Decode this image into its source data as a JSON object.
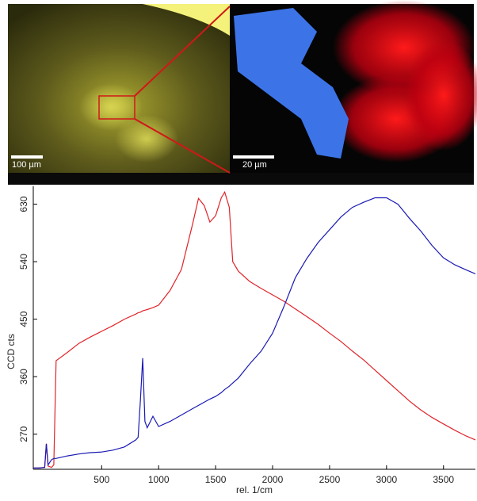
{
  "images": {
    "left_scale": "100 µm",
    "right_scale": "20 µm"
  },
  "chart_data": {
    "type": "line",
    "x_label": "rel. 1/cm",
    "y_label": "CCD cts",
    "x": [
      -100,
      -50,
      0,
      15,
      30,
      60,
      80,
      100,
      200,
      300,
      400,
      500,
      600,
      700,
      800,
      820,
      840,
      860,
      880,
      900,
      950,
      1000,
      1100,
      1200,
      1300,
      1350,
      1400,
      1450,
      1500,
      1550,
      1580,
      1620,
      1650,
      1700,
      1800,
      1900,
      2000,
      2100,
      2200,
      2300,
      2400,
      2500,
      2600,
      2700,
      2800,
      2900,
      3000,
      3100,
      3200,
      3300,
      3400,
      3500,
      3600,
      3700,
      3780
    ],
    "series": [
      {
        "color": "#e0242a",
        "values": [
          217,
          217,
          218,
          255,
          220,
          218,
          222,
          385,
          398,
          412,
          422,
          431,
          440,
          450,
          458,
          460,
          461,
          463,
          464,
          465,
          468,
          472,
          495,
          528,
          600,
          639,
          628,
          602,
          612,
          640,
          649,
          625,
          540,
          525,
          509,
          498,
          488,
          478,
          466,
          454,
          442,
          428,
          415,
          400,
          386,
          370,
          354,
          338,
          322,
          308,
          296,
          286,
          276,
          267,
          261
        ]
      },
      {
        "color": "#1a1ab4",
        "values": [
          217,
          217,
          218,
          255,
          222,
          230,
          232,
          232,
          236,
          239,
          241,
          242,
          245,
          250,
          261,
          265,
          323,
          389,
          290,
          280,
          298,
          282,
          290,
          300,
          310,
          315,
          320,
          325,
          329,
          335,
          340,
          345,
          350,
          358,
          380,
          400,
          428,
          470,
          515,
          545,
          570,
          590,
          610,
          625,
          633,
          640,
          640,
          630,
          608,
          588,
          565,
          546,
          535,
          527,
          521
        ]
      }
    ],
    "xlim": [
      -100,
      3780
    ],
    "ylim": [
      215,
      658
    ],
    "xticks": [
      500,
      1000,
      1500,
      2000,
      2500,
      3000,
      3500
    ],
    "yticks": [
      270,
      360,
      450,
      540,
      630
    ]
  }
}
